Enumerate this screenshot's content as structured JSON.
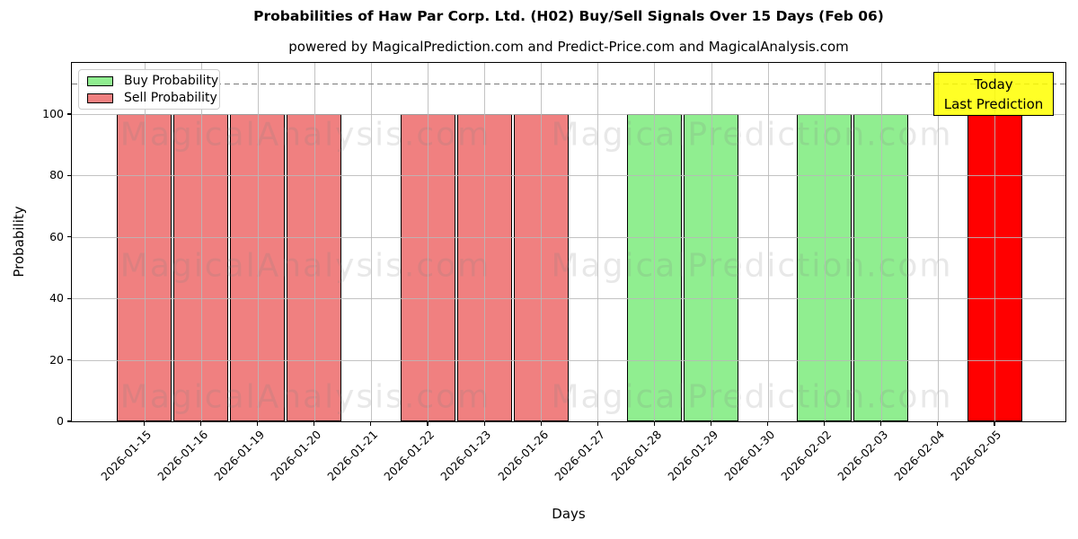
{
  "title": "Probabilities of Haw Par Corp. Ltd. (H02) Buy/Sell Signals Over 15 Days (Feb 06)",
  "subtitle": "powered by MagicalPrediction.com and Predict-Price.com and MagicalAnalysis.com",
  "watermarks": {
    "left_text": "MagicalAnalysis.com",
    "right_text": "MagicalPrediction.com"
  },
  "annotation": {
    "line1": "Today",
    "line2": "Last Prediction",
    "bg": "#ffff00"
  },
  "legend": [
    {
      "label": "Buy Probability",
      "color": "#90ee90"
    },
    {
      "label": "Sell Probability",
      "color": "#f08080"
    }
  ],
  "chart_data": {
    "type": "bar",
    "title": "Probabilities of Haw Par Corp. Ltd. (H02) Buy/Sell Signals Over 15 Days (Feb 06)",
    "xlabel": "Days",
    "ylabel": "Probability",
    "categories": [
      "2026-01-15",
      "2026-01-16",
      "2026-01-19",
      "2026-01-20",
      "2026-01-21",
      "2026-01-22",
      "2026-01-23",
      "2026-01-26",
      "2026-01-27",
      "2026-01-28",
      "2026-01-29",
      "2026-01-30",
      "2026-02-02",
      "2026-02-03",
      "2026-02-04",
      "2026-02-05"
    ],
    "series": [
      {
        "name": "Buy Probability",
        "color": "#90ee90",
        "values": [
          0,
          0,
          0,
          0,
          0,
          0,
          0,
          0,
          0,
          100,
          100,
          0,
          100,
          100,
          0,
          0
        ]
      },
      {
        "name": "Sell Probability",
        "color": "#f08080",
        "values": [
          100,
          100,
          100,
          100,
          0,
          100,
          100,
          100,
          0,
          0,
          0,
          0,
          0,
          0,
          0,
          0
        ]
      },
      {
        "name": "Today Last Prediction",
        "color": "#ff0000",
        "values": [
          0,
          0,
          0,
          0,
          0,
          0,
          0,
          0,
          0,
          0,
          0,
          0,
          0,
          0,
          0,
          100
        ]
      }
    ],
    "yticks": [
      0,
      20,
      40,
      60,
      80,
      100
    ],
    "ylim": [
      0,
      116.7
    ],
    "dashed_line_y": 110,
    "grid": true,
    "legend_position": "upper left",
    "bar_edge_color": "#000000"
  }
}
